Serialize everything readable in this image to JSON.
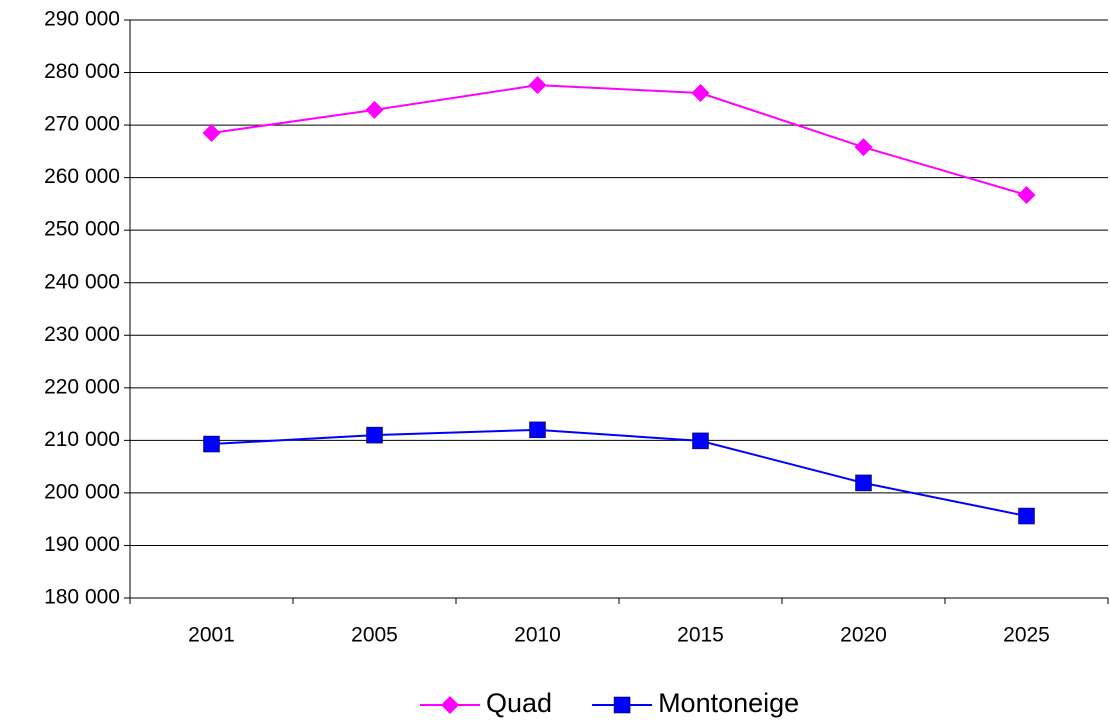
{
  "chart_data": {
    "type": "line",
    "categories": [
      "2001",
      "2005",
      "2010",
      "2015",
      "2020",
      "2025"
    ],
    "series": [
      {
        "name": "Quad",
        "color": "#ff00ff",
        "marker": "diamond",
        "values": [
          268500,
          272900,
          277600,
          276100,
          265800,
          256700
        ]
      },
      {
        "name": "Montoneige",
        "color": "#0000ff",
        "marker": "square",
        "values": [
          209300,
          211000,
          212000,
          209900,
          201900,
          195600
        ]
      }
    ],
    "ylim": [
      180000,
      290000
    ],
    "yticks": [
      {
        "value": 180000,
        "label": "180 000"
      },
      {
        "value": 190000,
        "label": "190 000"
      },
      {
        "value": 200000,
        "label": "200 000"
      },
      {
        "value": 210000,
        "label": "210 000"
      },
      {
        "value": 220000,
        "label": "220 000"
      },
      {
        "value": 230000,
        "label": "230 000"
      },
      {
        "value": 240000,
        "label": "240 000"
      },
      {
        "value": 250000,
        "label": "250 000"
      },
      {
        "value": 260000,
        "label": "260 000"
      },
      {
        "value": 270000,
        "label": "270 000"
      },
      {
        "value": 280000,
        "label": "280 000"
      },
      {
        "value": 290000,
        "label": "290 000"
      }
    ],
    "grid": true,
    "legend": "bottom"
  }
}
